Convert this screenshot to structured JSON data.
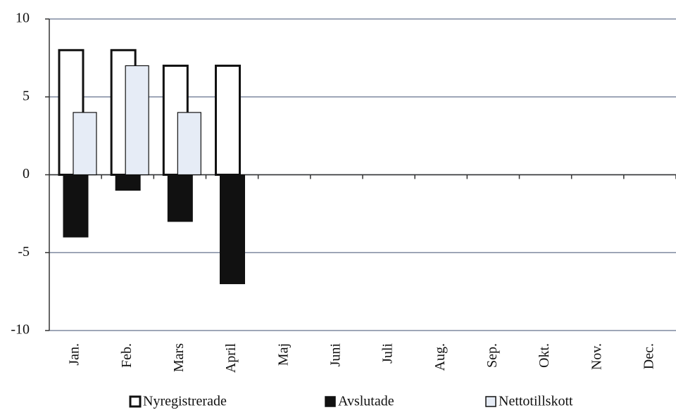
{
  "chart_data": {
    "type": "bar",
    "categories": [
      "Jan.",
      "Feb.",
      "Mars",
      "April",
      "Maj",
      "Juni",
      "Juli",
      "Aug.",
      "Sep.",
      "Okt.",
      "Nov.",
      "Dec."
    ],
    "series": [
      {
        "name": "Nyregistrerade",
        "color": "#ffffff",
        "values": [
          8,
          8,
          7,
          7,
          null,
          null,
          null,
          null,
          null,
          null,
          null,
          null
        ]
      },
      {
        "name": "Avslutade",
        "color": "#111111",
        "values": [
          -4,
          -1,
          -3,
          -7,
          null,
          null,
          null,
          null,
          null,
          null,
          null,
          null
        ]
      },
      {
        "name": "Nettotillskott",
        "color": "#e6ecf6",
        "values": [
          4,
          7,
          4,
          0,
          null,
          null,
          null,
          null,
          null,
          null,
          null,
          null
        ]
      }
    ],
    "ylim": [
      -10,
      10
    ],
    "yticks": [
      -10,
      -5,
      0,
      5,
      10
    ],
    "grid": true
  }
}
